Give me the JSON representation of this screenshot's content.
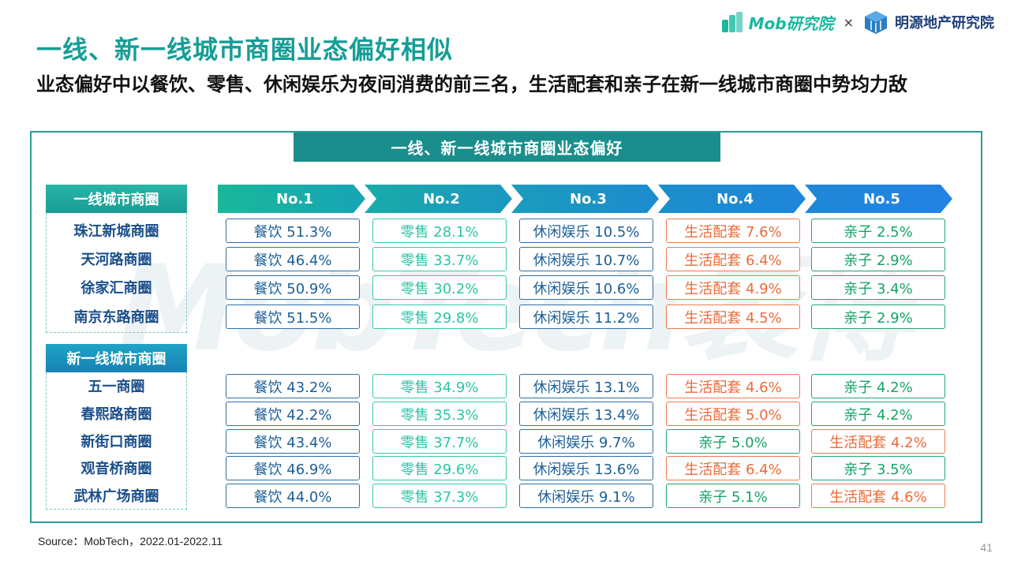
{
  "logos": {
    "mob": "Mob研究院",
    "separator": "×",
    "mingyuan": "明源地产研究院"
  },
  "title": "一线、新一线城市商圈业态偏好相似",
  "subtitle": "业态偏好中以餐饮、零售、休闲娱乐为夜间消费的前三名，生活配套和亲子在新一线城市商圈中势均力敌",
  "panel_title": "一线、新一线城市商圈业态偏好",
  "watermark": "MobTech袤博",
  "ranks": [
    "No.1",
    "No.2",
    "No.3",
    "No.4",
    "No.5"
  ],
  "colors": {
    "teal": "#159e96",
    "food": "#1b5f98",
    "retail": "#2ec4a5",
    "life": "#ec6a37",
    "kids": "#16a466"
  },
  "groups": [
    {
      "label": "一线城市商圈",
      "rows": [
        {
          "name": "珠江新城商圈",
          "cells": [
            "餐饮 51.3%",
            "零售 28.1%",
            "休闲娱乐 10.5%",
            "生活配套 7.6%",
            "亲子 2.5%"
          ]
        },
        {
          "name": "天河路商圈",
          "cells": [
            "餐饮 46.4%",
            "零售 33.7%",
            "休闲娱乐 10.7%",
            "生活配套 6.4%",
            "亲子 2.9%"
          ]
        },
        {
          "name": "徐家汇商圈",
          "cells": [
            "餐饮 50.9%",
            "零售 30.2%",
            "休闲娱乐 10.6%",
            "生活配套 4.9%",
            "亲子 3.4%"
          ]
        },
        {
          "name": "南京东路商圈",
          "cells": [
            "餐饮 51.5%",
            "零售 29.8%",
            "休闲娱乐 11.2%",
            "生活配套 4.5%",
            "亲子 2.9%"
          ]
        }
      ]
    },
    {
      "label": "新一线城市商圈",
      "rows": [
        {
          "name": "五一商圈",
          "cells": [
            "餐饮 43.2%",
            "零售 34.9%",
            "休闲娱乐 13.1%",
            "生活配套 4.6%",
            "亲子 4.2%"
          ]
        },
        {
          "name": "春熙路商圈",
          "cells": [
            "餐饮 42.2%",
            "零售 35.3%",
            "休闲娱乐 13.4%",
            "生活配套 5.0%",
            "亲子 4.2%"
          ]
        },
        {
          "name": "新街口商圈",
          "cells": [
            "餐饮 43.4%",
            "零售 37.7%",
            "休闲娱乐 9.7%",
            "亲子 5.0%",
            "生活配套 4.2%"
          ]
        },
        {
          "name": "观音桥商圈",
          "cells": [
            "餐饮 46.9%",
            "零售 29.6%",
            "休闲娱乐 13.6%",
            "生活配套 6.4%",
            "亲子 3.5%"
          ]
        },
        {
          "name": "武林广场商圈",
          "cells": [
            "餐饮 44.0%",
            "零售 37.3%",
            "休闲娱乐 9.1%",
            "亲子 5.1%",
            "生活配套 4.6%"
          ]
        }
      ]
    }
  ],
  "source": "Source：MobTech，2022.01-2022.11",
  "page_number": "41"
}
